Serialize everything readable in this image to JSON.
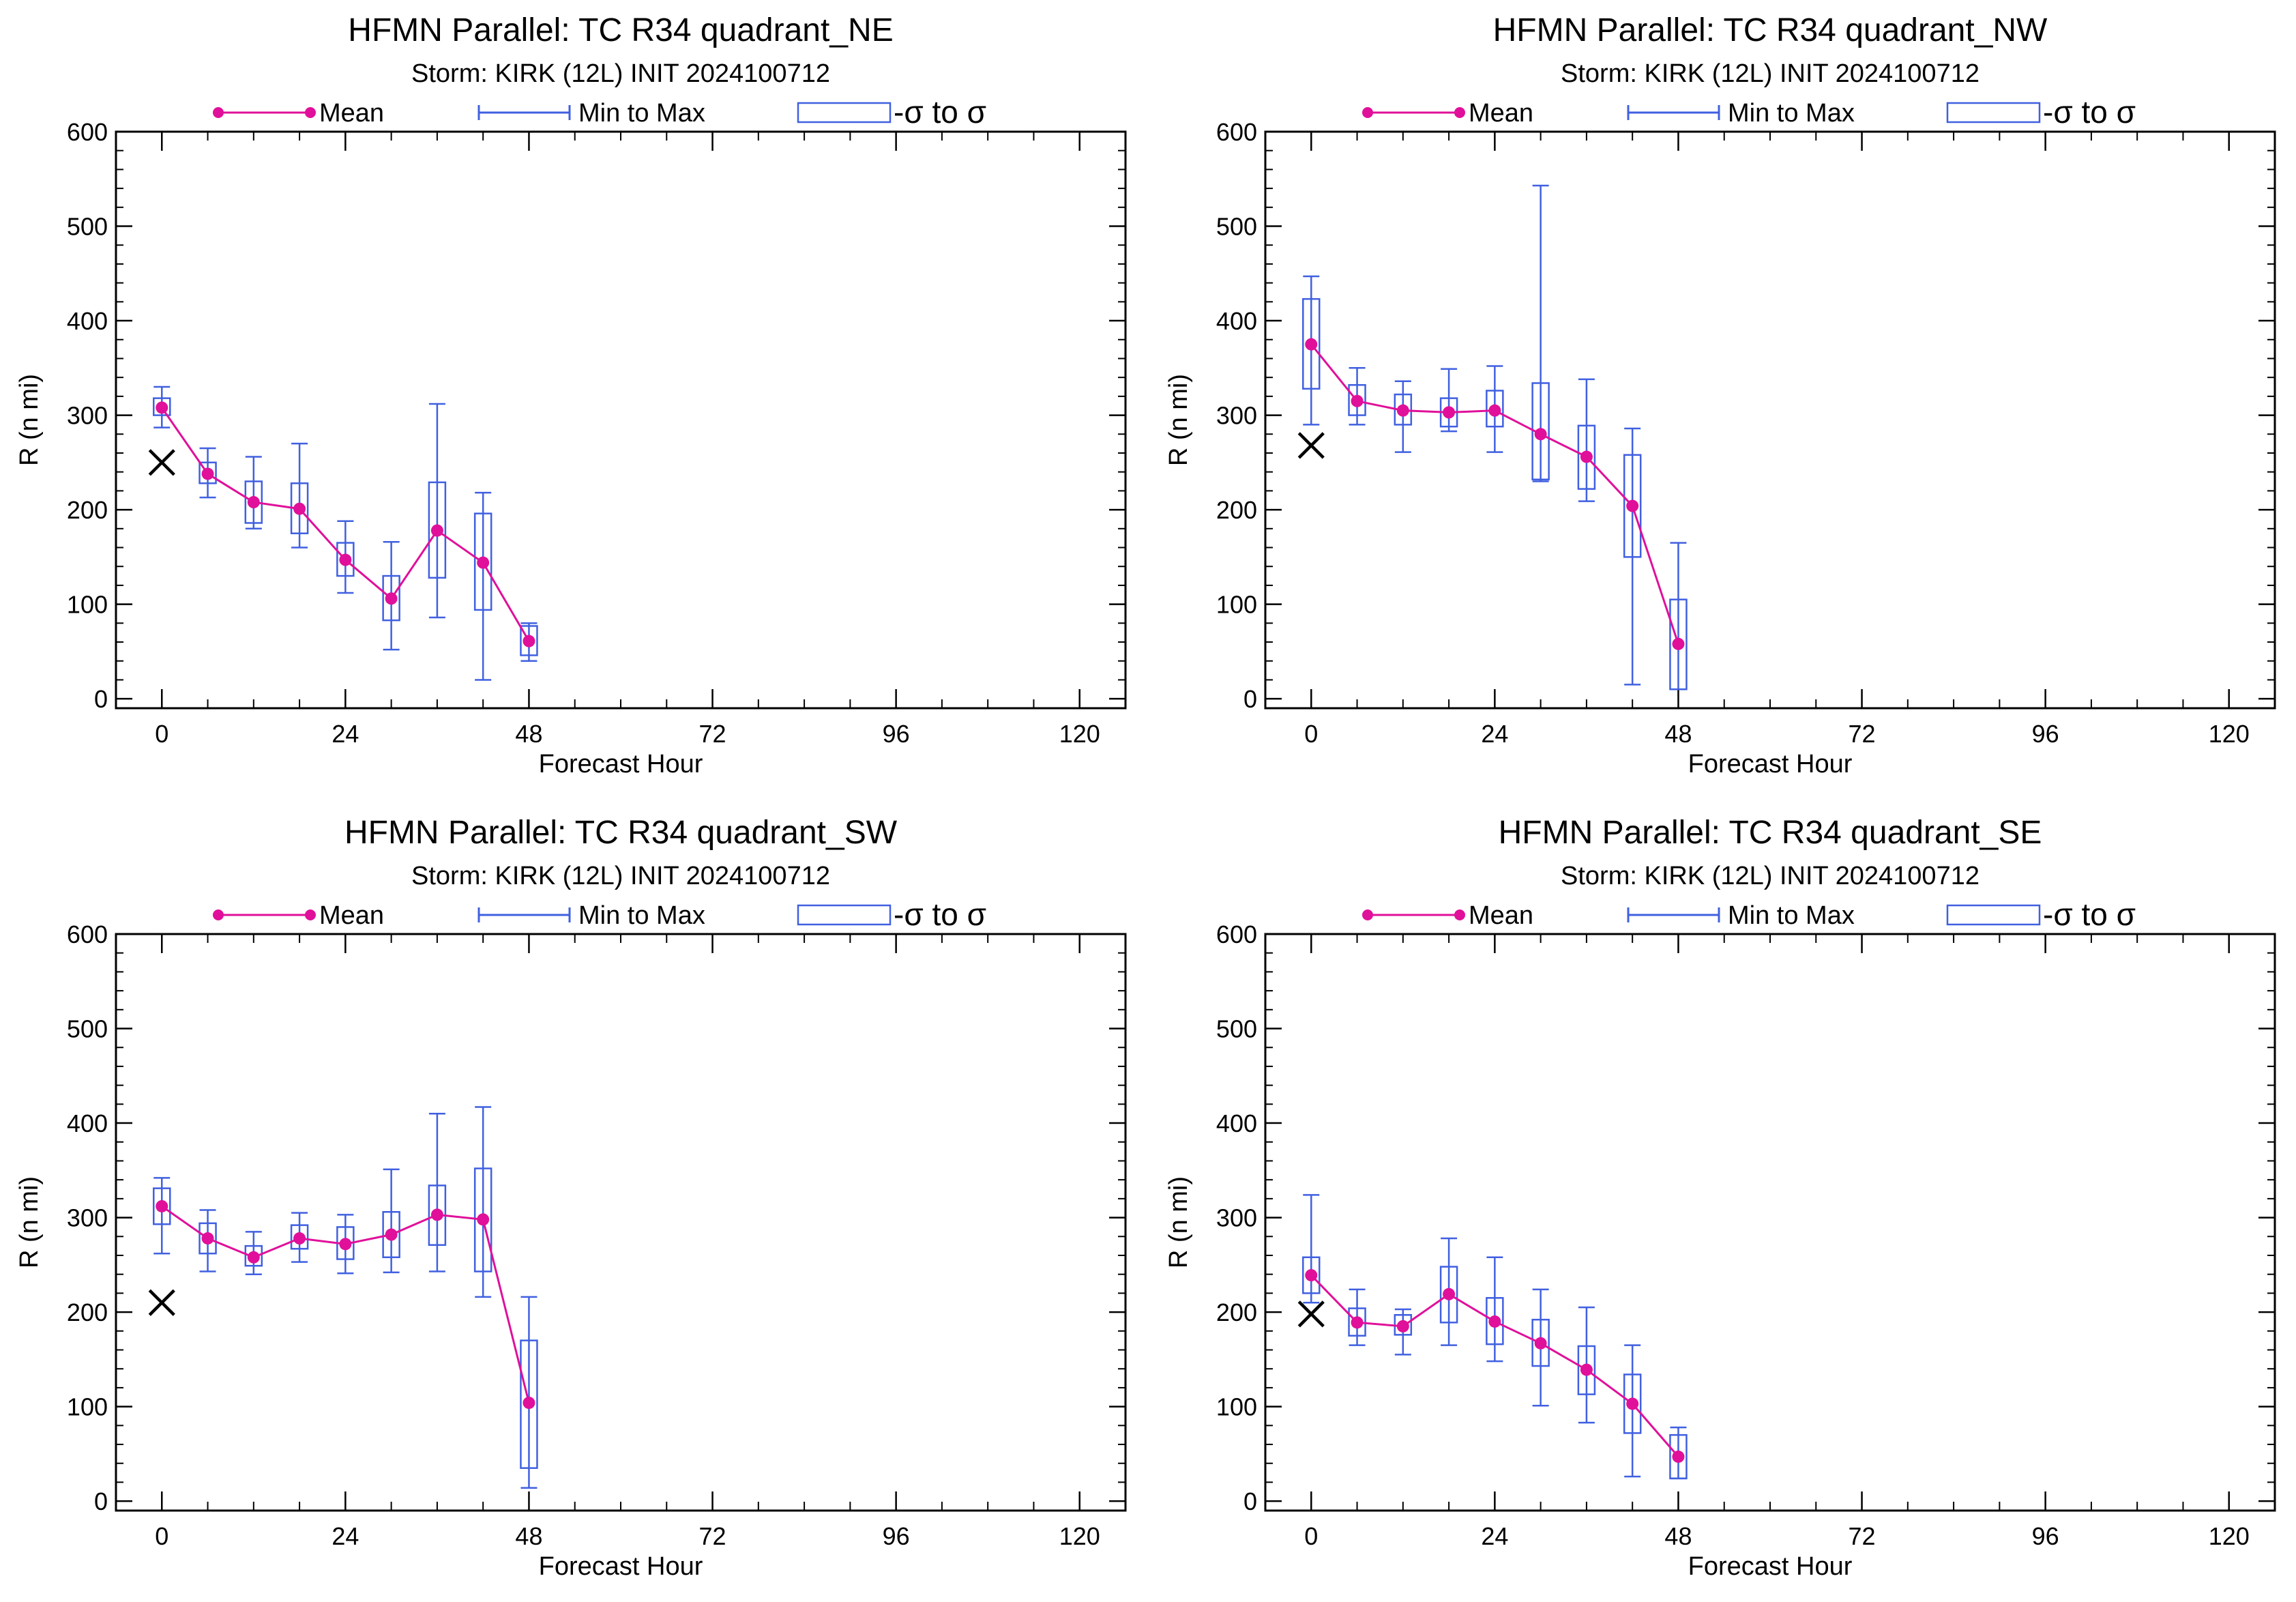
{
  "colors": {
    "mean": "#e0109a",
    "range": "#4060e0",
    "best_track": "#000000",
    "axes": "#000000"
  },
  "legend": {
    "mean_label": "Mean",
    "range_label": "Min to Max",
    "sigma_label": "-σ to σ"
  },
  "chart_data": [
    {
      "type": "box",
      "title": "HFMN Parallel: TC  R34 quadrant_NE",
      "subtitle": "Storm: KIRK (12L) INIT 2024100712",
      "xlabel": "Forecast Hour",
      "ylabel": "R (n mi)",
      "xlim": [
        -6,
        126
      ],
      "ylim": [
        -10,
        600
      ],
      "xticks": [
        0,
        24,
        48,
        72,
        96,
        120
      ],
      "yticks": [
        0,
        100,
        200,
        300,
        400,
        500,
        600
      ],
      "best_track": {
        "x": 0,
        "y": 250
      },
      "series": [
        {
          "x": 0,
          "mean": 308,
          "min": 287,
          "max": 330,
          "sig_lo": 300,
          "sig_hi": 318
        },
        {
          "x": 6,
          "mean": 238,
          "min": 213,
          "max": 265,
          "sig_lo": 228,
          "sig_hi": 250
        },
        {
          "x": 12,
          "mean": 208,
          "min": 180,
          "max": 256,
          "sig_lo": 186,
          "sig_hi": 230
        },
        {
          "x": 18,
          "mean": 201,
          "min": 160,
          "max": 270,
          "sig_lo": 175,
          "sig_hi": 228
        },
        {
          "x": 24,
          "mean": 147,
          "min": 112,
          "max": 188,
          "sig_lo": 130,
          "sig_hi": 165
        },
        {
          "x": 30,
          "mean": 106,
          "min": 52,
          "max": 166,
          "sig_lo": 83,
          "sig_hi": 130
        },
        {
          "x": 36,
          "mean": 178,
          "min": 86,
          "max": 312,
          "sig_lo": 128,
          "sig_hi": 229
        },
        {
          "x": 42,
          "mean": 144,
          "min": 20,
          "max": 218,
          "sig_lo": 94,
          "sig_hi": 196
        },
        {
          "x": 48,
          "mean": 61,
          "min": 40,
          "max": 80,
          "sig_lo": 46,
          "sig_hi": 77
        }
      ]
    },
    {
      "type": "box",
      "title": "HFMN Parallel: TC  R34 quadrant_NW",
      "subtitle": "Storm: KIRK (12L) INIT 2024100712",
      "xlabel": "Forecast Hour",
      "ylabel": "R (n mi)",
      "xlim": [
        -6,
        126
      ],
      "ylim": [
        -10,
        600
      ],
      "xticks": [
        0,
        24,
        48,
        72,
        96,
        120
      ],
      "yticks": [
        0,
        100,
        200,
        300,
        400,
        500,
        600
      ],
      "best_track": {
        "x": 0,
        "y": 268
      },
      "series": [
        {
          "x": 0,
          "mean": 375,
          "min": 290,
          "max": 447,
          "sig_lo": 328,
          "sig_hi": 423
        },
        {
          "x": 6,
          "mean": 315,
          "min": 290,
          "max": 350,
          "sig_lo": 300,
          "sig_hi": 332
        },
        {
          "x": 12,
          "mean": 305,
          "min": 261,
          "max": 336,
          "sig_lo": 290,
          "sig_hi": 322
        },
        {
          "x": 18,
          "mean": 303,
          "min": 283,
          "max": 349,
          "sig_lo": 288,
          "sig_hi": 318
        },
        {
          "x": 24,
          "mean": 305,
          "min": 261,
          "max": 352,
          "sig_lo": 288,
          "sig_hi": 326
        },
        {
          "x": 30,
          "mean": 280,
          "min": 230,
          "max": 543,
          "sig_lo": 232,
          "sig_hi": 334
        },
        {
          "x": 36,
          "mean": 256,
          "min": 209,
          "max": 338,
          "sig_lo": 222,
          "sig_hi": 289
        },
        {
          "x": 42,
          "mean": 204,
          "min": 15,
          "max": 286,
          "sig_lo": 150,
          "sig_hi": 258
        },
        {
          "x": 48,
          "mean": 58,
          "min": 10,
          "max": 165,
          "sig_lo": 10,
          "sig_hi": 105
        }
      ]
    },
    {
      "type": "box",
      "title": "HFMN Parallel: TC  R34 quadrant_SW",
      "subtitle": "Storm: KIRK (12L) INIT 2024100712",
      "xlabel": "Forecast Hour",
      "ylabel": "R (n mi)",
      "xlim": [
        -6,
        126
      ],
      "ylim": [
        -10,
        600
      ],
      "xticks": [
        0,
        24,
        48,
        72,
        96,
        120
      ],
      "yticks": [
        0,
        100,
        200,
        300,
        400,
        500,
        600
      ],
      "best_track": {
        "x": 0,
        "y": 210
      },
      "series": [
        {
          "x": 0,
          "mean": 312,
          "min": 262,
          "max": 342,
          "sig_lo": 293,
          "sig_hi": 331
        },
        {
          "x": 6,
          "mean": 278,
          "min": 243,
          "max": 308,
          "sig_lo": 262,
          "sig_hi": 294
        },
        {
          "x": 12,
          "mean": 258,
          "min": 240,
          "max": 285,
          "sig_lo": 249,
          "sig_hi": 270
        },
        {
          "x": 18,
          "mean": 278,
          "min": 253,
          "max": 305,
          "sig_lo": 267,
          "sig_hi": 292
        },
        {
          "x": 24,
          "mean": 272,
          "min": 241,
          "max": 303,
          "sig_lo": 256,
          "sig_hi": 290
        },
        {
          "x": 30,
          "mean": 282,
          "min": 242,
          "max": 351,
          "sig_lo": 258,
          "sig_hi": 306
        },
        {
          "x": 36,
          "mean": 303,
          "min": 243,
          "max": 410,
          "sig_lo": 271,
          "sig_hi": 334
        },
        {
          "x": 42,
          "mean": 298,
          "min": 216,
          "max": 417,
          "sig_lo": 243,
          "sig_hi": 352
        },
        {
          "x": 48,
          "mean": 104,
          "min": 14,
          "max": 216,
          "sig_lo": 35,
          "sig_hi": 170
        }
      ]
    },
    {
      "type": "box",
      "title": "HFMN Parallel: TC  R34 quadrant_SE",
      "subtitle": "Storm: KIRK (12L) INIT 2024100712",
      "xlabel": "Forecast Hour",
      "ylabel": "R (n mi)",
      "xlim": [
        -6,
        126
      ],
      "ylim": [
        -10,
        600
      ],
      "xticks": [
        0,
        24,
        48,
        72,
        96,
        120
      ],
      "yticks": [
        0,
        100,
        200,
        300,
        400,
        500,
        600
      ],
      "best_track": {
        "x": 0,
        "y": 198
      },
      "series": [
        {
          "x": 0,
          "mean": 239,
          "min": 210,
          "max": 324,
          "sig_lo": 220,
          "sig_hi": 258
        },
        {
          "x": 6,
          "mean": 189,
          "min": 165,
          "max": 224,
          "sig_lo": 175,
          "sig_hi": 204
        },
        {
          "x": 12,
          "mean": 185,
          "min": 155,
          "max": 203,
          "sig_lo": 176,
          "sig_hi": 197
        },
        {
          "x": 18,
          "mean": 219,
          "min": 165,
          "max": 278,
          "sig_lo": 189,
          "sig_hi": 248
        },
        {
          "x": 24,
          "mean": 190,
          "min": 148,
          "max": 258,
          "sig_lo": 166,
          "sig_hi": 215
        },
        {
          "x": 30,
          "mean": 167,
          "min": 101,
          "max": 224,
          "sig_lo": 143,
          "sig_hi": 192
        },
        {
          "x": 36,
          "mean": 139,
          "min": 83,
          "max": 205,
          "sig_lo": 113,
          "sig_hi": 164
        },
        {
          "x": 42,
          "mean": 103,
          "min": 26,
          "max": 165,
          "sig_lo": 72,
          "sig_hi": 134
        },
        {
          "x": 48,
          "mean": 47,
          "min": 24,
          "max": 78,
          "sig_lo": 24,
          "sig_hi": 70
        }
      ]
    }
  ]
}
